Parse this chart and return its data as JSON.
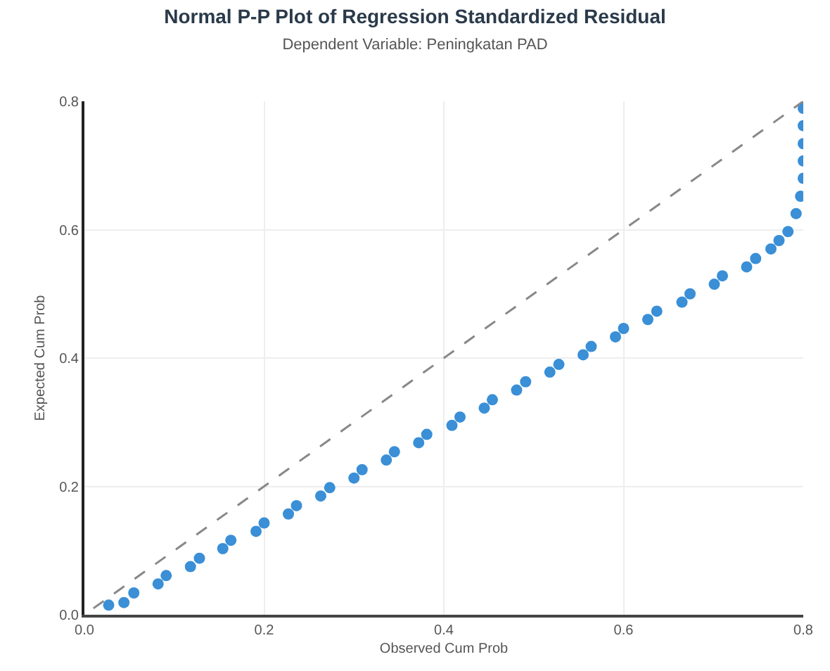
{
  "chart_data": {
    "type": "scatter",
    "title": "Normal P-P Plot of Regression Standardized Residual",
    "subtitle": "Dependent Variable: Peningkatan PAD",
    "xlabel": "Observed Cum Prob",
    "ylabel": "Expected Cum Prob",
    "xlim": [
      0,
      0.8
    ],
    "ylim": [
      0,
      0.8
    ],
    "xticks": [
      {
        "value": 0,
        "label": "0.0"
      },
      0.2,
      0.4,
      0.6,
      0.8
    ],
    "yticks": [
      {
        "value": 0,
        "label": "0.0"
      },
      0.2,
      0.4,
      0.6,
      0.8
    ],
    "grid": true,
    "marker": "circle",
    "series": [
      {
        "color": "#3a8fd6",
        "x": [
          0.027,
          0.044,
          0.055,
          0.082,
          0.091,
          0.118,
          0.128,
          0.154,
          0.163,
          0.191,
          0.2,
          0.227,
          0.236,
          0.263,
          0.273,
          0.3,
          0.309,
          0.336,
          0.345,
          0.372,
          0.381,
          0.409,
          0.418,
          0.445,
          0.454,
          0.481,
          0.491,
          0.518,
          0.528,
          0.555,
          0.564,
          0.591,
          0.6,
          0.627,
          0.637,
          0.665,
          0.674,
          0.701,
          0.71,
          0.737,
          0.747,
          0.764,
          0.773,
          0.783,
          0.792,
          0.797,
          0.8,
          0.8,
          0.8,
          0.8,
          0.8
        ],
        "values": [
          0.015,
          0.019,
          0.034,
          0.048,
          0.061,
          0.075,
          0.088,
          0.103,
          0.116,
          0.13,
          0.143,
          0.157,
          0.17,
          0.185,
          0.198,
          0.213,
          0.226,
          0.241,
          0.254,
          0.268,
          0.281,
          0.295,
          0.308,
          0.322,
          0.335,
          0.35,
          0.363,
          0.378,
          0.39,
          0.405,
          0.418,
          0.433,
          0.446,
          0.46,
          0.473,
          0.487,
          0.5,
          0.515,
          0.528,
          0.542,
          0.555,
          0.57,
          0.583,
          0.597,
          0.625,
          0.652,
          0.68,
          0.707,
          0.734,
          0.762,
          0.789
        ]
      },
      {
        "type": "line",
        "color": "#888888",
        "line_style": "dashed",
        "marker": "none",
        "x": [
          0.01,
          0.8
        ],
        "values": [
          0.01,
          0.8
        ]
      }
    ]
  }
}
